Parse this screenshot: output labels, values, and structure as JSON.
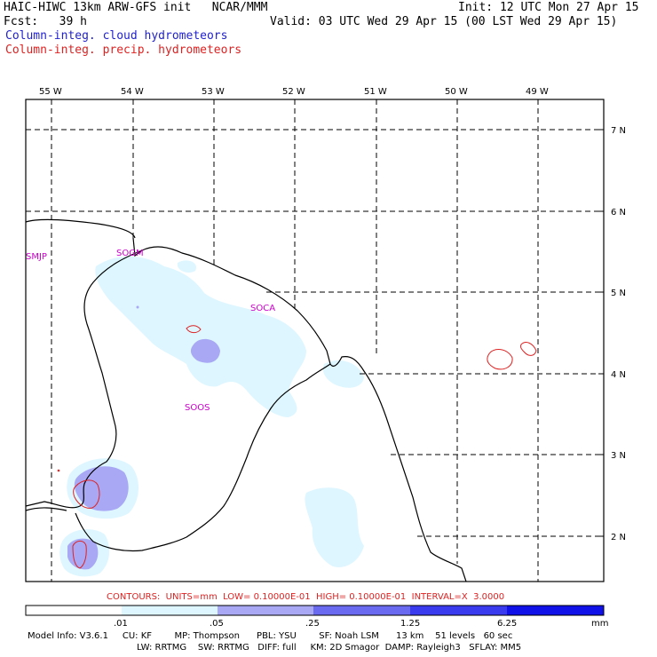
{
  "header": {
    "line1_left": "HAIC-HIWC 13km ARW-GFS init   NCAR/MMM",
    "line1_right": "Init: 12 UTC Mon 27 Apr 15",
    "line2_left": "Fcst:   39 h",
    "line2_right": "Valid: 03 UTC Wed 29 Apr 15 (00 LST Wed 29 Apr 15)",
    "field1": "Column-integ. cloud hydrometeors",
    "field2": "Column-integ. precip. hydrometeors"
  },
  "map": {
    "lon_labels": [
      "55 W",
      "54 W",
      "53 W",
      "52 W",
      "51 W",
      "50 W",
      "49 W"
    ],
    "lat_labels": [
      "7 N",
      "6 N",
      "5 N",
      "4 N",
      "3 N",
      "2 N"
    ],
    "stations": [
      "SMJP",
      "SOGM",
      "SOCA",
      "SOOS"
    ],
    "colors": {
      "cloud_light": "#ddf6ff",
      "cloud_mid": "#a8a8f4",
      "precip_contour": "#dd2222",
      "station": "#cc00cc"
    }
  },
  "footer": {
    "contours": "CONTOURS:  UNITS=mm  LOW= 0.10000E-01  HIGH= 0.10000E-01  INTERVAL=X  3.0000",
    "scale_labels": [
      ".01",
      ".05",
      ".25",
      "1.25",
      "6.25"
    ],
    "scale_units": "mm",
    "scale_colors": [
      "#ffffff",
      "#ddf6ff",
      "#a8a8f4",
      "#6a6af0",
      "#3a3aee",
      "#1010e8"
    ],
    "model_line1": "Model Info: V3.6.1     CU: KF        MP: Thompson      PBL: YSU        SF: Noah LSM      13 km    51 levels   60 sec",
    "model_line2": "LW: RRTMG    SW: RRTMG   DIFF: full     KM: 2D Smagor  DAMP: Rayleigh3   SFLAY: MM5"
  }
}
